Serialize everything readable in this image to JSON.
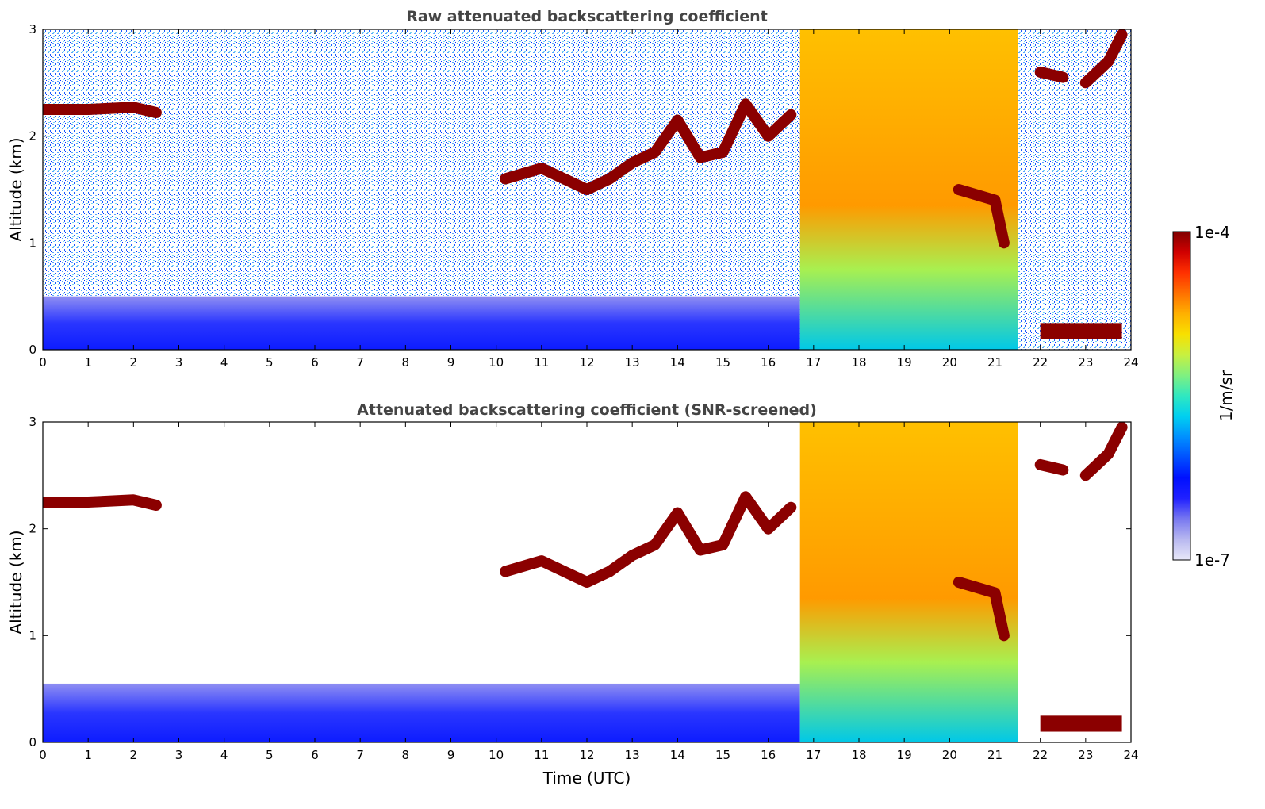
{
  "chart_data": [
    {
      "type": "heatmap",
      "title": "Raw attenuated backscattering coefficient",
      "xlabel": "",
      "ylabel": "Altitude (km)",
      "xlim": [
        0,
        24
      ],
      "ylim": [
        0,
        3
      ],
      "x_ticks": [
        "0",
        "1",
        "2",
        "3",
        "4",
        "5",
        "6",
        "7",
        "8",
        "9",
        "10",
        "11",
        "12",
        "13",
        "14",
        "15",
        "16",
        "17",
        "18",
        "19",
        "20",
        "21",
        "22",
        "23",
        "24"
      ],
      "y_ticks": [
        "0",
        "1",
        "2",
        "3"
      ],
      "features": [
        {
          "kind": "boundary-layer",
          "x": [
            0,
            16.7
          ],
          "y": [
            0,
            0.5
          ],
          "level": "low"
        },
        {
          "kind": "cloud-layer",
          "points": [
            [
              0,
              2.25
            ],
            [
              1,
              2.25
            ],
            [
              2,
              2.27
            ],
            [
              2.5,
              2.22
            ]
          ],
          "level": "max"
        },
        {
          "kind": "cloud-layer",
          "points": [
            [
              10.2,
              1.6
            ],
            [
              11,
              1.7
            ],
            [
              12,
              1.5
            ],
            [
              12.5,
              1.6
            ],
            [
              13,
              1.75
            ],
            [
              13.5,
              1.85
            ],
            [
              14,
              2.15
            ],
            [
              14.5,
              1.8
            ],
            [
              15,
              1.85
            ],
            [
              15.5,
              2.3
            ],
            [
              16,
              2.0
            ],
            [
              16.5,
              2.2
            ]
          ],
          "level": "max"
        },
        {
          "kind": "rain-column",
          "x": [
            16.7,
            21.5
          ],
          "y": [
            0,
            3
          ],
          "level": "high"
        },
        {
          "kind": "cloud-layer",
          "points": [
            [
              20.2,
              1.5
            ],
            [
              21,
              1.4
            ],
            [
              21.2,
              1.0
            ]
          ],
          "level": "max"
        },
        {
          "kind": "cloud-layer",
          "points": [
            [
              22,
              2.6
            ],
            [
              22.5,
              2.55
            ]
          ],
          "level": "max"
        },
        {
          "kind": "cloud-layer",
          "points": [
            [
              23,
              2.5
            ],
            [
              23.5,
              2.7
            ],
            [
              23.8,
              2.95
            ]
          ],
          "level": "max"
        },
        {
          "kind": "fog-layer",
          "x": [
            22,
            23.8
          ],
          "y": [
            0.1,
            0.25
          ],
          "level": "max"
        }
      ]
    },
    {
      "type": "heatmap",
      "title": "Attenuated backscattering coefficient (SNR-screened)",
      "xlabel": "Time (UTC)",
      "ylabel": "Altitude (km)",
      "xlim": [
        0,
        24
      ],
      "ylim": [
        0,
        3
      ],
      "x_ticks": [
        "0",
        "1",
        "2",
        "3",
        "4",
        "5",
        "6",
        "7",
        "8",
        "9",
        "10",
        "11",
        "12",
        "13",
        "14",
        "15",
        "16",
        "17",
        "18",
        "19",
        "20",
        "21",
        "22",
        "23",
        "24"
      ],
      "y_ticks": [
        "0",
        "1",
        "2",
        "3"
      ],
      "features": [
        {
          "kind": "boundary-layer",
          "x": [
            0,
            16.7
          ],
          "y": [
            0,
            0.55
          ],
          "level": "low"
        },
        {
          "kind": "cloud-layer",
          "points": [
            [
              0,
              2.25
            ],
            [
              1,
              2.25
            ],
            [
              2,
              2.27
            ],
            [
              2.5,
              2.22
            ]
          ],
          "level": "max"
        },
        {
          "kind": "cloud-layer",
          "points": [
            [
              10.2,
              1.6
            ],
            [
              11,
              1.7
            ],
            [
              12,
              1.5
            ],
            [
              12.5,
              1.6
            ],
            [
              13,
              1.75
            ],
            [
              13.5,
              1.85
            ],
            [
              14,
              2.15
            ],
            [
              14.5,
              1.8
            ],
            [
              15,
              1.85
            ],
            [
              15.5,
              2.3
            ],
            [
              16,
              2.0
            ],
            [
              16.5,
              2.2
            ]
          ],
          "level": "max"
        },
        {
          "kind": "rain-column",
          "x": [
            16.7,
            21.5
          ],
          "y": [
            0,
            3
          ],
          "level": "high"
        },
        {
          "kind": "cloud-layer",
          "points": [
            [
              20.2,
              1.5
            ],
            [
              21,
              1.4
            ],
            [
              21.2,
              1.0
            ]
          ],
          "level": "max"
        },
        {
          "kind": "cloud-layer",
          "points": [
            [
              22,
              2.6
            ],
            [
              22.5,
              2.55
            ]
          ],
          "level": "max"
        },
        {
          "kind": "cloud-layer",
          "points": [
            [
              23,
              2.5
            ],
            [
              23.5,
              2.7
            ],
            [
              23.8,
              2.95
            ]
          ],
          "level": "max"
        },
        {
          "kind": "fog-layer",
          "x": [
            22,
            23.8
          ],
          "y": [
            0.1,
            0.25
          ],
          "level": "max"
        }
      ]
    }
  ],
  "colorbar": {
    "label": "1/m/sr",
    "max_label": "1e-4",
    "min_label": "1e-7",
    "colors": [
      "#e8e8f8",
      "#b8b8f0",
      "#7878f0",
      "#2020ff",
      "#0010ff",
      "#0050ff",
      "#0090ff",
      "#00d0f0",
      "#30e8c0",
      "#80f080",
      "#c8f040",
      "#f8e000",
      "#ffb000",
      "#ff7000",
      "#ff3000",
      "#d00000",
      "#800000"
    ]
  }
}
